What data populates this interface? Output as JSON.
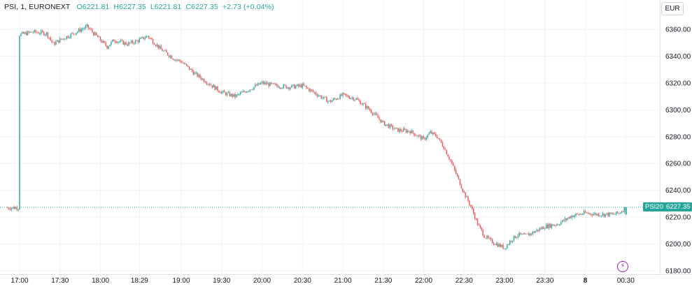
{
  "legend": {
    "symbol": "PSI, 1, EURONEXT",
    "open": "O6221.81",
    "high": "H6227.35",
    "low": "L6221.81",
    "close": "C6227.35",
    "change": "+2.73 (+0.04%)"
  },
  "currency_button": "EUR",
  "price_tag": {
    "symbol": "PSI20",
    "price": "6227.35"
  },
  "colors": {
    "up": "#26a69a",
    "down": "#ef5350",
    "grid": "#f0f3fa",
    "accent_purple": "#9c27b0"
  },
  "icons": {
    "bolt": "lightning-icon"
  },
  "chart_data": {
    "type": "candlestick",
    "y_axis": {
      "ticks": [
        6180,
        6200,
        6220,
        6240,
        6260,
        6280,
        6300,
        6320,
        6340,
        6360
      ],
      "tick_labels": [
        "6180.00",
        "6200.00",
        "6220.00",
        "6240.00",
        "6260.00",
        "6280.00",
        "6300.00",
        "6320.00",
        "6340.00",
        "6360.00"
      ],
      "ylim": [
        6177,
        6366
      ]
    },
    "x_axis": {
      "tick_labels": [
        "17:00",
        "17:30",
        "18:00",
        "18:29",
        "19:00",
        "19:30",
        "20:00",
        "20:30",
        "21:00",
        "21:30",
        "22:00",
        "22:30",
        "23:00",
        "23:30",
        "8",
        "00:30"
      ],
      "bold_labels": [
        "8"
      ]
    },
    "last_price": 6227.35,
    "trend": [
      [
        "17:00",
        6356
      ],
      [
        "17:10",
        6358
      ],
      [
        "17:20",
        6357
      ],
      [
        "17:25",
        6349
      ],
      [
        "17:30",
        6352
      ],
      [
        "17:40",
        6357
      ],
      [
        "17:50",
        6362
      ],
      [
        "18:00",
        6352
      ],
      [
        "18:05",
        6347
      ],
      [
        "18:10",
        6352
      ],
      [
        "18:20",
        6349
      ],
      [
        "18:29",
        6352
      ],
      [
        "18:35",
        6355
      ],
      [
        "18:45",
        6345
      ],
      [
        "18:55",
        6338
      ],
      [
        "19:00",
        6336
      ],
      [
        "19:10",
        6327
      ],
      [
        "19:20",
        6320
      ],
      [
        "19:30",
        6313
      ],
      [
        "19:40",
        6310
      ],
      [
        "19:50",
        6315
      ],
      [
        "20:00",
        6320
      ],
      [
        "20:10",
        6318
      ],
      [
        "20:20",
        6317
      ],
      [
        "20:30",
        6318
      ],
      [
        "20:40",
        6312
      ],
      [
        "20:50",
        6306
      ],
      [
        "21:00",
        6311
      ],
      [
        "21:10",
        6308
      ],
      [
        "21:20",
        6300
      ],
      [
        "21:30",
        6290
      ],
      [
        "21:40",
        6285
      ],
      [
        "21:50",
        6284
      ],
      [
        "22:00",
        6278
      ],
      [
        "22:05",
        6283
      ],
      [
        "22:10",
        6280
      ],
      [
        "22:15",
        6272
      ],
      [
        "22:20",
        6262
      ],
      [
        "22:25",
        6250
      ],
      [
        "22:30",
        6238
      ],
      [
        "22:35",
        6228
      ],
      [
        "22:40",
        6215
      ],
      [
        "22:45",
        6206
      ],
      [
        "22:50",
        6202
      ],
      [
        "23:00",
        6197
      ],
      [
        "23:05",
        6203
      ],
      [
        "23:10",
        6207
      ],
      [
        "23:15",
        6206
      ],
      [
        "23:20",
        6208
      ],
      [
        "23:30",
        6213
      ],
      [
        "23:40",
        6215
      ],
      [
        "23:50",
        6221
      ],
      [
        "00:00",
        6223
      ],
      [
        "00:10",
        6222
      ],
      [
        "00:20",
        6222
      ],
      [
        "00:25",
        6223
      ],
      [
        "00:30",
        6227
      ]
    ]
  }
}
